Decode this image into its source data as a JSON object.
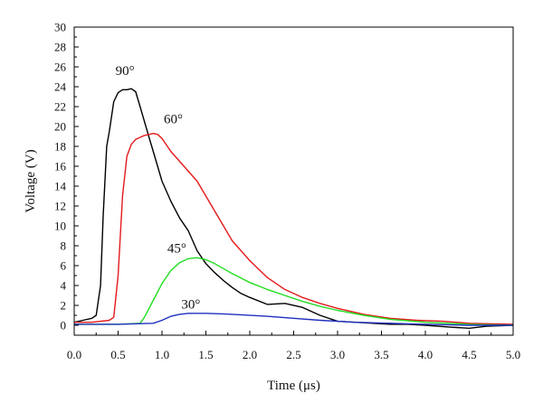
{
  "chart_data": {
    "type": "line",
    "xlabel": "Time (μs)",
    "ylabel": "Voltage (V)",
    "xlim": [
      0.0,
      5.0
    ],
    "ylim": [
      -1,
      30
    ],
    "x_ticks": [
      "0.0",
      "0.5",
      "1.0",
      "1.5",
      "2.0",
      "2.5",
      "3.0",
      "3.5",
      "4.0",
      "4.5",
      "5.0"
    ],
    "y_ticks": [
      "0",
      "2",
      "4",
      "6",
      "8",
      "10",
      "12",
      "14",
      "16",
      "18",
      "20",
      "22",
      "24",
      "26",
      "28",
      "30"
    ],
    "grid": false,
    "series": [
      {
        "name": "90°",
        "color": "#000000",
        "x": [
          0.0,
          0.1,
          0.2,
          0.25,
          0.3,
          0.33,
          0.37,
          0.4,
          0.45,
          0.5,
          0.55,
          0.6,
          0.65,
          0.7,
          0.75,
          0.8,
          0.85,
          0.9,
          1.0,
          1.1,
          1.2,
          1.3,
          1.4,
          1.5,
          1.6,
          1.7,
          1.8,
          1.9,
          2.0,
          2.2,
          2.4,
          2.6,
          2.8,
          3.0,
          3.2,
          3.4,
          3.6,
          3.8,
          4.0,
          4.3,
          4.5,
          4.7,
          5.0
        ],
        "y": [
          0.3,
          0.5,
          0.7,
          1.0,
          4.0,
          11.0,
          18.0,
          19.5,
          22.5,
          23.4,
          23.7,
          23.7,
          23.8,
          23.5,
          22.0,
          20.5,
          19.0,
          17.5,
          14.5,
          12.5,
          10.8,
          9.5,
          7.5,
          6.2,
          5.3,
          4.5,
          3.8,
          3.2,
          2.8,
          2.1,
          2.2,
          1.8,
          1.0,
          0.4,
          0.3,
          0.2,
          0.1,
          0.1,
          0.0,
          -0.2,
          -0.3,
          -0.1,
          0.0
        ]
      },
      {
        "name": "60°",
        "color": "#e41a1c",
        "x": [
          0.0,
          0.2,
          0.4,
          0.45,
          0.5,
          0.55,
          0.6,
          0.65,
          0.7,
          0.8,
          0.9,
          0.95,
          1.0,
          1.1,
          1.2,
          1.3,
          1.4,
          1.5,
          1.6,
          1.7,
          1.8,
          2.0,
          2.2,
          2.4,
          2.6,
          2.8,
          3.0,
          3.3,
          3.6,
          3.9,
          4.2,
          4.5,
          5.0
        ],
        "y": [
          0.3,
          0.3,
          0.5,
          0.8,
          5.0,
          13.0,
          17.0,
          18.2,
          18.7,
          19.1,
          19.3,
          19.2,
          18.8,
          17.5,
          16.5,
          15.5,
          14.5,
          13.0,
          11.5,
          10.0,
          8.5,
          6.5,
          4.8,
          3.6,
          2.8,
          2.2,
          1.7,
          1.1,
          0.7,
          0.5,
          0.4,
          0.2,
          0.1
        ]
      },
      {
        "name": "45°",
        "color": "#22dd22",
        "x": [
          0.0,
          0.5,
          0.75,
          0.8,
          0.9,
          1.0,
          1.1,
          1.2,
          1.3,
          1.4,
          1.5,
          1.6,
          1.7,
          1.8,
          2.0,
          2.2,
          2.4,
          2.6,
          2.8,
          3.0,
          3.3,
          3.6,
          4.0,
          4.5,
          5.0
        ],
        "y": [
          0.1,
          0.1,
          0.2,
          0.8,
          2.5,
          4.2,
          5.5,
          6.3,
          6.7,
          6.8,
          6.6,
          6.2,
          5.7,
          5.2,
          4.3,
          3.6,
          3.0,
          2.4,
          1.9,
          1.5,
          1.0,
          0.6,
          0.3,
          0.1,
          0.0
        ]
      },
      {
        "name": "30°",
        "color": "#1f2fbf",
        "x": [
          0.0,
          0.5,
          0.9,
          1.0,
          1.1,
          1.2,
          1.3,
          1.5,
          1.7,
          1.9,
          2.2,
          2.5,
          2.8,
          3.2,
          3.6,
          4.0,
          4.5,
          5.0
        ],
        "y": [
          0.1,
          0.1,
          0.2,
          0.5,
          0.9,
          1.1,
          1.2,
          1.2,
          1.15,
          1.05,
          0.9,
          0.7,
          0.5,
          0.3,
          0.2,
          0.1,
          0.0,
          0.0
        ]
      }
    ],
    "annotations": [
      {
        "text": "90°",
        "x": 0.47,
        "y": 25.2
      },
      {
        "text": "60°",
        "x": 1.02,
        "y": 20.3
      },
      {
        "text": "45°",
        "x": 1.06,
        "y": 7.3
      },
      {
        "text": "30°",
        "x": 1.22,
        "y": 1.7
      }
    ]
  }
}
